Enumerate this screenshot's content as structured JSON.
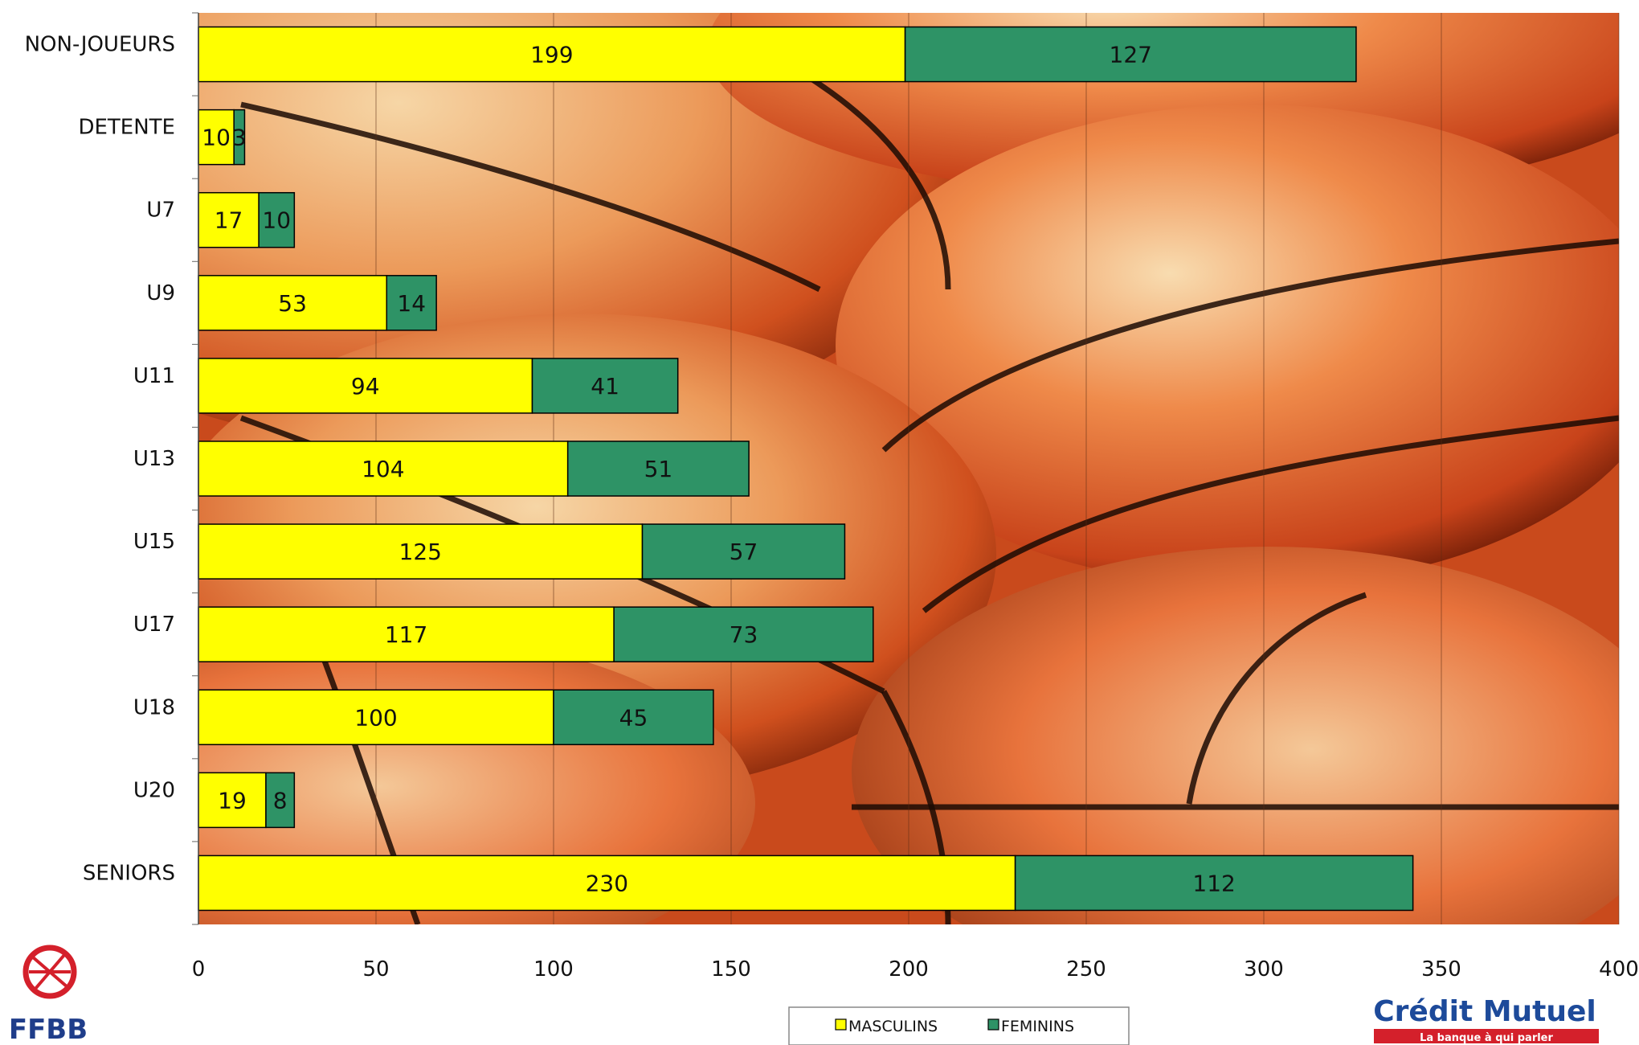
{
  "chart_data": {
    "type": "bar",
    "orientation": "horizontal",
    "stacked": true,
    "categories": [
      "NON-JOUEURS",
      "DETENTE",
      "U7",
      "U9",
      "U11",
      "U13",
      "U15",
      "U17",
      "U18",
      "U20",
      "SENIORS"
    ],
    "series": [
      {
        "name": "MASCULINS",
        "color": "#ffff00",
        "values": [
          199,
          10,
          17,
          53,
          94,
          104,
          125,
          117,
          100,
          19,
          230
        ]
      },
      {
        "name": "FEMININS",
        "color": "#2e9366",
        "values": [
          127,
          3,
          10,
          14,
          41,
          51,
          57,
          73,
          45,
          8,
          112
        ]
      }
    ],
    "xlim": [
      0,
      400
    ],
    "xticks": [
      0,
      50,
      100,
      150,
      200,
      250,
      300,
      350,
      400
    ],
    "grid": "vertical",
    "legend": "bottom-center",
    "background": "basketball-photo"
  },
  "logos": {
    "left": {
      "name": "ffbb-logo",
      "text": "FFBB"
    },
    "right": {
      "name": "credit-mutuel-logo",
      "text": "Crédit Mutuel",
      "tagline": "La banque à qui parler"
    }
  }
}
